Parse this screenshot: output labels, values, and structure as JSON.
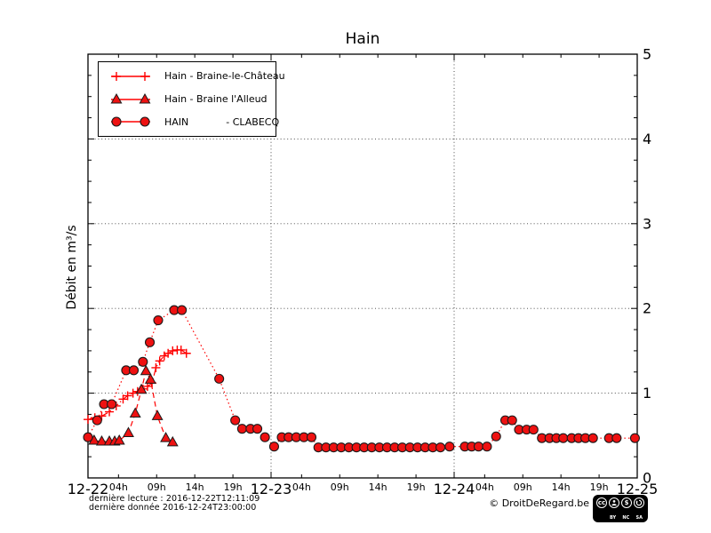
{
  "title": "Hain",
  "ylabel": "Débit en m³/s",
  "footer": {
    "last_reading": "dernière lecture : 2016-12-22T12:11:09",
    "last_data": "dernière donnée  2016-12-24T23:00:00"
  },
  "copyright": "© DroitDeRegard.be",
  "cc_badge": {
    "cc": "cc",
    "nc": "$",
    "labels": [
      "BY",
      "NC",
      "SA"
    ]
  },
  "colors": {
    "line_red": "#ff0000",
    "marker_fill": "#ee1111",
    "marker_edge": "#1a1a1a",
    "grid": "#3a3a3a",
    "axis": "#000000"
  },
  "chart_data": {
    "type": "line",
    "title": "Hain",
    "ylabel": "Débit en m³/s",
    "x_axis": {
      "unit": "hours from 2016-12-22 00:00",
      "range_hours": [
        0,
        72
      ],
      "major_tick_hours": [
        0,
        24,
        48,
        72
      ],
      "major_tick_labels": [
        "12-22",
        "12-23",
        "12-24",
        "12-25"
      ],
      "minor_tick_hours": [
        4,
        9,
        14,
        19
      ],
      "minor_tick_labels": [
        "04h",
        "09h",
        "14h",
        "19h"
      ]
    },
    "y_axis": {
      "min": 0,
      "max": 5,
      "major_ticks": [
        0,
        1,
        2,
        3,
        4,
        5
      ],
      "minor_tick_step": 0.25,
      "label": "Débit en m³/s",
      "labels_side": "right"
    },
    "grid": {
      "style": "dotted",
      "horizontal_at": [
        1,
        2,
        3,
        4
      ],
      "vertical_at_hours": [
        24,
        48
      ]
    },
    "legend_position": "upper-left",
    "series": [
      {
        "name": "Hain - Braine-le-Château",
        "marker": "plus",
        "linestyle": "dashdot",
        "color": "#ff0000",
        "points": [
          [
            0,
            0.69
          ],
          [
            0.9,
            0.71
          ],
          [
            1.8,
            0.73
          ],
          [
            2.8,
            0.78
          ],
          [
            3.7,
            0.85
          ],
          [
            4.6,
            0.93
          ],
          [
            5.2,
            0.97
          ],
          [
            5.9,
            1.0
          ],
          [
            6.5,
            1.02
          ],
          [
            7.2,
            1.05
          ],
          [
            7.8,
            1.08
          ],
          [
            8.4,
            1.12
          ],
          [
            8.9,
            1.3
          ],
          [
            9.4,
            1.38
          ],
          [
            10.0,
            1.44
          ],
          [
            10.5,
            1.47
          ],
          [
            11.1,
            1.5
          ],
          [
            11.7,
            1.51
          ],
          [
            12.2,
            1.51
          ],
          [
            12.9,
            1.47
          ]
        ]
      },
      {
        "name": "Hain - Braine l'Alleud",
        "marker": "triangle",
        "linestyle": "dashed",
        "color": "#ff0000",
        "points": [
          [
            0.8,
            0.44
          ],
          [
            1.8,
            0.43
          ],
          [
            2.8,
            0.43
          ],
          [
            3.5,
            0.43
          ],
          [
            4.1,
            0.44
          ],
          [
            5.3,
            0.53
          ],
          [
            6.2,
            0.76
          ],
          [
            7.0,
            1.04
          ],
          [
            7.6,
            1.26
          ],
          [
            8.2,
            1.16
          ],
          [
            9.1,
            0.73
          ],
          [
            10.2,
            0.47
          ],
          [
            11.1,
            0.42
          ]
        ]
      },
      {
        "name": "HAIN            - CLABECQ",
        "marker": "circle",
        "linestyle": "dotted",
        "color": "#ff0000",
        "points": [
          [
            0,
            0.48
          ],
          [
            1.2,
            0.68
          ],
          [
            2.1,
            0.87
          ],
          [
            3.1,
            0.87
          ],
          [
            5.0,
            1.27
          ],
          [
            6.0,
            1.27
          ],
          [
            7.2,
            1.37
          ],
          [
            8.1,
            1.6
          ],
          [
            9.2,
            1.86
          ],
          [
            11.3,
            1.98
          ],
          [
            12.3,
            1.98
          ],
          [
            17.2,
            1.17
          ],
          [
            19.3,
            0.68
          ],
          [
            20.2,
            0.58
          ],
          [
            21.3,
            0.58
          ],
          [
            22.2,
            0.58
          ],
          [
            23.2,
            0.48
          ],
          [
            24.4,
            0.37
          ],
          [
            25.4,
            0.48
          ],
          [
            26.3,
            0.48
          ],
          [
            27.3,
            0.48
          ],
          [
            28.3,
            0.48
          ],
          [
            29.3,
            0.48
          ],
          [
            30.2,
            0.36
          ],
          [
            31.2,
            0.36
          ],
          [
            32.2,
            0.36
          ],
          [
            33.2,
            0.36
          ],
          [
            34.2,
            0.36
          ],
          [
            35.2,
            0.36
          ],
          [
            36.2,
            0.36
          ],
          [
            37.2,
            0.36
          ],
          [
            38.2,
            0.36
          ],
          [
            39.2,
            0.36
          ],
          [
            40.2,
            0.36
          ],
          [
            41.2,
            0.36
          ],
          [
            42.2,
            0.36
          ],
          [
            43.2,
            0.36
          ],
          [
            44.2,
            0.36
          ],
          [
            45.2,
            0.36
          ],
          [
            46.2,
            0.36
          ],
          [
            47.4,
            0.37
          ],
          [
            49.4,
            0.37
          ],
          [
            50.3,
            0.37
          ],
          [
            51.2,
            0.37
          ],
          [
            52.3,
            0.37
          ],
          [
            53.5,
            0.49
          ],
          [
            54.7,
            0.68
          ],
          [
            55.6,
            0.68
          ],
          [
            56.5,
            0.57
          ],
          [
            57.5,
            0.57
          ],
          [
            58.4,
            0.57
          ],
          [
            59.5,
            0.47
          ],
          [
            60.5,
            0.47
          ],
          [
            61.4,
            0.47
          ],
          [
            62.3,
            0.47
          ],
          [
            63.4,
            0.47
          ],
          [
            64.3,
            0.47
          ],
          [
            65.2,
            0.47
          ],
          [
            66.2,
            0.47
          ],
          [
            68.3,
            0.47
          ],
          [
            69.3,
            0.47
          ],
          [
            71.7,
            0.47
          ]
        ]
      }
    ]
  }
}
